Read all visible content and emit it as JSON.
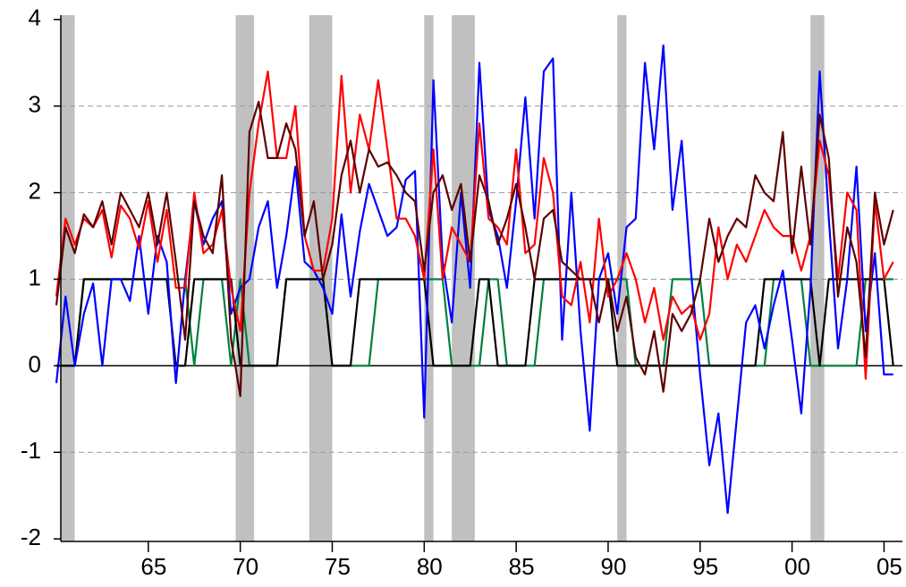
{
  "chart_data": {
    "type": "line",
    "xlim": [
      1960,
      2006
    ],
    "ylim": [
      -2.05,
      4.05
    ],
    "yticks": [
      -2,
      -1,
      0,
      1,
      2,
      3,
      4
    ],
    "xticks": [
      {
        "value": 1965,
        "label": "65"
      },
      {
        "value": 1970,
        "label": "70"
      },
      {
        "value": 1975,
        "label": "75"
      },
      {
        "value": 1980,
        "label": "80"
      },
      {
        "value": 1985,
        "label": "85"
      },
      {
        "value": 1990,
        "label": "90"
      },
      {
        "value": 1995,
        "label": "95"
      },
      {
        "value": 2000,
        "label": "00"
      },
      {
        "value": 2005,
        "label": "05"
      }
    ],
    "grid": true,
    "shading_color": "#c0c0c0",
    "shaded_periods": [
      [
        1960.25,
        1961.0
      ],
      [
        1969.75,
        1970.75
      ],
      [
        1973.75,
        1975.0
      ],
      [
        1980.0,
        1980.5
      ],
      [
        1981.5,
        1982.75
      ],
      [
        1990.5,
        1991.0
      ],
      [
        2001.0,
        2001.75
      ]
    ],
    "x": [
      1960,
      1960.5,
      1961,
      1961.5,
      1962,
      1962.5,
      1963,
      1963.5,
      1964,
      1964.5,
      1965,
      1965.5,
      1966,
      1966.5,
      1967,
      1967.5,
      1968,
      1968.5,
      1969,
      1969.5,
      1970,
      1970.5,
      1971,
      1971.5,
      1972,
      1972.5,
      1973,
      1973.5,
      1974,
      1974.5,
      1975,
      1975.5,
      1976,
      1976.5,
      1977,
      1977.5,
      1978,
      1978.5,
      1979,
      1979.5,
      1980,
      1980.5,
      1981,
      1981.5,
      1982,
      1982.5,
      1983,
      1983.5,
      1984,
      1984.5,
      1985,
      1985.5,
      1986,
      1986.5,
      1987,
      1987.5,
      1988,
      1988.5,
      1989,
      1989.5,
      1990,
      1990.5,
      1991,
      1991.5,
      1992,
      1992.5,
      1993,
      1993.5,
      1994,
      1994.5,
      1995,
      1995.5,
      1996,
      1996.5,
      1997,
      1997.5,
      1998,
      1998.5,
      1999,
      1999.5,
      2000,
      2000.5,
      2001,
      2001.5,
      2002,
      2002.5,
      2003,
      2003.5,
      2004,
      2004.5,
      2005,
      2005.5
    ],
    "series": [
      {
        "color": "#008040",
        "values": [
          0,
          0,
          0,
          1,
          1,
          1,
          1,
          1,
          1,
          1,
          1,
          1,
          1,
          1,
          1,
          0,
          1,
          1,
          1,
          0,
          1,
          0,
          0,
          0,
          0,
          1,
          1,
          1,
          1,
          1,
          0,
          0,
          0,
          0,
          0,
          1,
          1,
          1,
          1,
          1,
          1,
          1,
          1,
          0,
          0,
          0,
          0,
          1,
          1,
          0,
          0,
          0,
          0,
          1,
          1,
          1,
          1,
          1,
          1,
          1,
          1,
          1,
          1,
          0,
          0,
          0,
          0,
          1,
          1,
          1,
          1,
          0,
          0,
          0,
          0,
          0,
          0,
          0,
          1,
          1,
          1,
          1,
          0,
          0,
          0,
          0,
          0,
          0,
          1,
          1,
          1,
          1
        ]
      },
      {
        "color": "#000000",
        "values": [
          0,
          0,
          0,
          1,
          1,
          1,
          1,
          1,
          1,
          1,
          1,
          1,
          1,
          0,
          0,
          1,
          1,
          1,
          1,
          1,
          0,
          0,
          0,
          0,
          0,
          1,
          1,
          1,
          1,
          1,
          0,
          0,
          0,
          1,
          1,
          1,
          1,
          1,
          1,
          1,
          1,
          0,
          0,
          0,
          0,
          0,
          1,
          1,
          0,
          0,
          0,
          0,
          1,
          1,
          1,
          1,
          1,
          1,
          1,
          1,
          1,
          0,
          0,
          0,
          0,
          0,
          0,
          0,
          0,
          0,
          0,
          0,
          0,
          0,
          0,
          0,
          0,
          1,
          1,
          1,
          1,
          1,
          1,
          0,
          1,
          1,
          1,
          1,
          1,
          1,
          1,
          0
        ]
      },
      {
        "color": "#0000ff",
        "values": [
          -0.2,
          0.8,
          0,
          0.6,
          0.95,
          0,
          1,
          1,
          0.75,
          1.5,
          0.6,
          1.5,
          1.2,
          -0.2,
          1,
          1.9,
          1.4,
          1.7,
          1.9,
          0.6,
          0.9,
          1,
          1.6,
          1.9,
          0.9,
          1.5,
          2.3,
          1.2,
          1.1,
          0.9,
          0.6,
          1.75,
          0.8,
          1.55,
          2.1,
          1.8,
          1.5,
          1.6,
          2.15,
          2.25,
          -0.6,
          3.3,
          1.2,
          0.5,
          2,
          0.9,
          3.5,
          1.8,
          1.5,
          0.9,
          1.9,
          3.1,
          1.7,
          3.4,
          3.55,
          0.3,
          2,
          0.4,
          -0.75,
          1,
          1.3,
          0.6,
          1.6,
          1.7,
          3.5,
          2.5,
          3.7,
          1.8,
          2.6,
          1.1,
          -0.1,
          -1.15,
          -0.55,
          -1.7,
          -0.6,
          0.5,
          0.7,
          0.2,
          0.7,
          1.1,
          0.3,
          -0.55,
          0.9,
          3.4,
          1.7,
          0.2,
          1,
          2.3,
          0.4,
          1.3,
          -0.1,
          -0.1
        ]
      },
      {
        "color": "#ff0000",
        "values": [
          0.8,
          1.7,
          1.4,
          1.7,
          1.6,
          1.8,
          1.25,
          1.85,
          1.7,
          1.35,
          1.9,
          1.2,
          1.8,
          0.9,
          0.9,
          2,
          1.3,
          1.4,
          1.8,
          0.9,
          0.4,
          2,
          2.8,
          3.4,
          2.4,
          2.4,
          3,
          1.5,
          1.1,
          1.1,
          1.7,
          3.35,
          2,
          2.9,
          2.5,
          3.3,
          2.5,
          1.7,
          1.7,
          1.5,
          1,
          2.5,
          1,
          1.6,
          1.4,
          1.2,
          2.8,
          1.7,
          1.6,
          1.4,
          2.5,
          1.3,
          1.4,
          2.4,
          2,
          0.8,
          0.7,
          1.2,
          0.5,
          1.7,
          0.8,
          1,
          1.3,
          1,
          0.5,
          0.9,
          0.3,
          0.8,
          0.6,
          0.7,
          0.3,
          0.6,
          1.6,
          1,
          1.4,
          1.2,
          1.5,
          1.8,
          1.6,
          1.5,
          1.5,
          1.1,
          1.5,
          2.6,
          2.2,
          1,
          2,
          1.8,
          -0.15,
          1.9,
          1,
          1.2
        ]
      },
      {
        "color": "#5c0000",
        "values": [
          0.7,
          1.6,
          1.3,
          1.75,
          1.6,
          1.9,
          1.4,
          2,
          1.8,
          1.6,
          2,
          1.4,
          2,
          1.2,
          0.3,
          1.9,
          1.5,
          1.3,
          2.2,
          0.3,
          -0.35,
          2.7,
          3.05,
          2.4,
          2.4,
          2.8,
          2.5,
          1.5,
          1.9,
          1,
          1.4,
          2.2,
          2.6,
          2,
          2.5,
          2.3,
          2.35,
          2.2,
          2,
          1.9,
          1.1,
          2,
          2.2,
          1.8,
          2.1,
          1.2,
          2.2,
          1.9,
          1.4,
          1.7,
          2.1,
          1.6,
          1,
          1.7,
          1.8,
          1.2,
          1.1,
          1,
          1,
          0.5,
          1,
          0.4,
          0.8,
          0.1,
          -0.1,
          0.4,
          -0.3,
          0.6,
          0.4,
          0.6,
          1,
          1.7,
          1.2,
          1.5,
          1.7,
          1.6,
          2.2,
          2,
          1.9,
          2.7,
          1.3,
          2.3,
          1.4,
          2.9,
          2.4,
          0.8,
          1.6,
          1.2,
          0.1,
          2,
          1.4,
          1.8
        ]
      }
    ]
  }
}
